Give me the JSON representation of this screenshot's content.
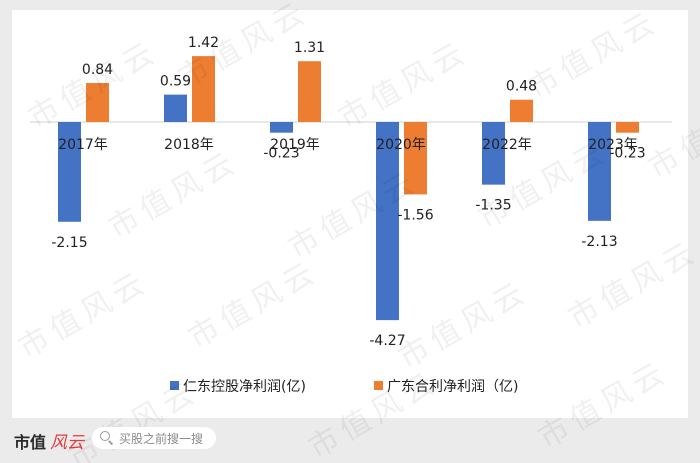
{
  "chart_data": {
    "type": "bar",
    "categories": [
      "2017年",
      "2018年",
      "2019年",
      "2020年",
      "2022年",
      "2023年"
    ],
    "series": [
      {
        "name": "仁东控股净利润(亿)",
        "color": "#4472c4",
        "values": [
          -2.15,
          0.59,
          -0.23,
          -4.27,
          -1.35,
          -2.13
        ]
      },
      {
        "name": "广东合利净利润（亿)",
        "color": "#ed7d31",
        "values": [
          0.84,
          1.42,
          1.31,
          -1.56,
          0.48,
          -0.23
        ]
      }
    ],
    "ylim": [
      -4.5,
      1.5
    ],
    "grid": false,
    "legend": "bottom"
  },
  "watermark": "市值风云",
  "footer": {
    "brand": "市值",
    "brand_script": "风云",
    "search_placeholder": "买股之前搜一搜"
  }
}
